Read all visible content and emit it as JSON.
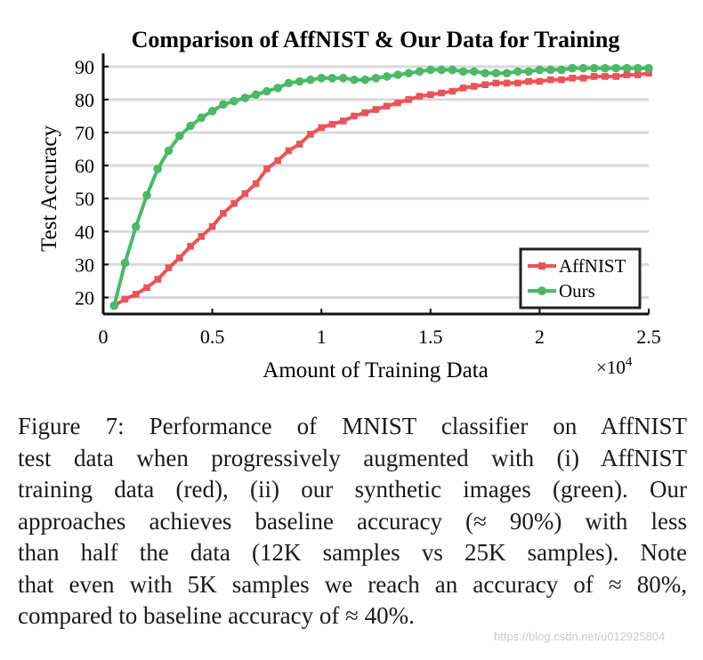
{
  "chart_data": {
    "type": "line",
    "title": "Comparison of AffNIST & Our Data for Training",
    "xlabel": "Amount of Training Data",
    "ylabel": "Test Accuracy",
    "x_multiplier": "×10",
    "x_multiplier_exp": "4",
    "xlim": [
      0,
      2.5
    ],
    "ylim": [
      15,
      94
    ],
    "xticks": [
      0,
      0.5,
      1,
      1.5,
      2,
      2.5
    ],
    "xtick_labels": [
      "0",
      "0.5",
      "1",
      "1.5",
      "2",
      "2.5"
    ],
    "yticks": [
      20,
      30,
      40,
      50,
      60,
      70,
      80,
      90
    ],
    "ytick_labels": [
      "20",
      "30",
      "40",
      "50",
      "60",
      "70",
      "80",
      "90"
    ],
    "grid": "horizontal",
    "legend_position": "bottom-right",
    "x": [
      0.05,
      0.1,
      0.15,
      0.2,
      0.25,
      0.3,
      0.35,
      0.4,
      0.45,
      0.5,
      0.55,
      0.6,
      0.65,
      0.7,
      0.75,
      0.8,
      0.85,
      0.9,
      0.95,
      1.0,
      1.05,
      1.1,
      1.15,
      1.2,
      1.25,
      1.3,
      1.35,
      1.4,
      1.45,
      1.5,
      1.55,
      1.6,
      1.65,
      1.7,
      1.75,
      1.8,
      1.85,
      1.9,
      1.95,
      2.0,
      2.05,
      2.1,
      2.15,
      2.2,
      2.25,
      2.3,
      2.35,
      2.4,
      2.45,
      2.5
    ],
    "series": [
      {
        "name": "AffNIST",
        "color": "#e8545a",
        "marker": "square",
        "values": [
          17.5,
          19.5,
          21,
          23,
          25.5,
          29,
          32,
          35.5,
          38.5,
          41.5,
          45.5,
          48.5,
          51.5,
          54.5,
          59,
          61.5,
          64.5,
          66.5,
          69.5,
          71.5,
          72.5,
          73.5,
          75,
          76,
          77,
          78,
          79,
          80,
          81,
          81.5,
          82,
          82.5,
          83.5,
          84,
          84.5,
          85,
          85,
          85,
          85.5,
          85.5,
          86,
          86,
          86.5,
          86.5,
          87,
          87,
          87,
          87.5,
          87.5,
          88
        ]
      },
      {
        "name": "Ours",
        "color": "#4cb868",
        "marker": "circle",
        "values": [
          17.5,
          30.5,
          41.5,
          51,
          59,
          64.5,
          69,
          72,
          74.5,
          76.5,
          78.5,
          79.5,
          80.5,
          81.5,
          82.5,
          83.5,
          85,
          85.5,
          86,
          86.5,
          86.5,
          86.5,
          86,
          86,
          86.5,
          87,
          87.5,
          88,
          88.5,
          89,
          89,
          89,
          88.5,
          88.5,
          88,
          88,
          88,
          88.5,
          88.5,
          89,
          89,
          89,
          89.5,
          89.5,
          89.5,
          89.5,
          89.5,
          89.5,
          89.5,
          89.5
        ]
      }
    ]
  },
  "caption": {
    "lines": [
      "Figure 7:  Performance of MNIST classifier on AffNIST",
      "test data when progressively augmented with (i) AffNIST",
      "training data (red), (ii) our synthetic images (green).  Our",
      "approaches achieves baseline accuracy (≈ 90%) with less",
      "than half the data (12K samples vs 25K samples).  Note",
      "that even with 5K samples we reach an accuracy of ≈ 80%,",
      "compared to baseline accuracy of ≈ 40%."
    ]
  },
  "watermark": "https://blog.csdn.net/u012925804"
}
